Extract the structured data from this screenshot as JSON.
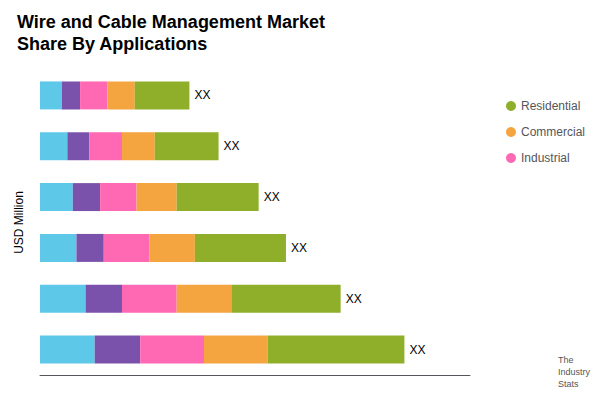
{
  "chart_data": {
    "type": "bar",
    "orientation": "horizontal",
    "stacked": true,
    "title": "Wire and Cable Management Market\nShare By Applications",
    "ylabel": "USD Million",
    "categories": [
      null,
      null,
      null,
      null,
      null,
      null
    ],
    "series": [
      {
        "color": "#5DC8E8",
        "values": [
          3.0,
          2.5,
          2.0,
          1.8,
          1.5,
          1.2
        ]
      },
      {
        "color": "#7B52AB",
        "values": [
          2.5,
          2.0,
          1.5,
          1.5,
          1.2,
          1.0
        ]
      },
      {
        "name": "Industrial",
        "color": "#FF69B4",
        "values": [
          3.5,
          3.0,
          2.5,
          2.0,
          1.8,
          1.5
        ]
      },
      {
        "name": "Commercial",
        "color": "#F4A540",
        "values": [
          3.5,
          3.0,
          2.5,
          2.2,
          1.8,
          1.5
        ]
      },
      {
        "name": "Residential",
        "color": "#8FAF2A",
        "values": [
          7.5,
          6.0,
          5.0,
          4.5,
          3.5,
          3.0
        ]
      }
    ],
    "xlim": [
      0,
      23.6
    ],
    "tick_labels": false,
    "grid": false,
    "legend": "upper right",
    "annotations": [
      {
        "text": "XX",
        "category": 0
      },
      {
        "text": "XX",
        "category": 1
      },
      {
        "text": "XX",
        "category": 2
      },
      {
        "text": "XX",
        "category": 3
      },
      {
        "text": "XX",
        "category": 4
      },
      {
        "text": "XX",
        "category": 5
      },
      {
        "text": "The\nIndustry\nStats"
      }
    ]
  }
}
